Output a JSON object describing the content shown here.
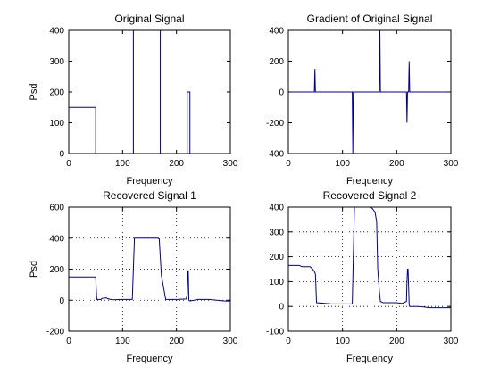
{
  "figure": {
    "background": "#ffffff",
    "line_color": "#00008b",
    "axis_color": "#000000"
  },
  "chart_data": [
    {
      "type": "line",
      "title": "Original Signal",
      "xlabel": "Frequency",
      "ylabel": "Psd",
      "xlim": [
        0,
        300
      ],
      "ylim": [
        0,
        400
      ],
      "xticks": [
        "0",
        "100",
        "200",
        "300"
      ],
      "yticks": [
        "0",
        "100",
        "200",
        "300",
        "400"
      ],
      "grid": false,
      "series": [
        {
          "x": [
            0,
            50,
            50,
            120,
            120,
            170,
            170,
            220,
            220,
            225,
            225,
            300
          ],
          "y": [
            150,
            150,
            0,
            0,
            400,
            400,
            0,
            0,
            200,
            200,
            0,
            0
          ]
        }
      ]
    },
    {
      "type": "line",
      "title": "Gradient of Original Signal",
      "xlabel": "Frequency",
      "ylabel": "",
      "xlim": [
        0,
        300
      ],
      "ylim": [
        -400,
        400
      ],
      "xticks": [
        "0",
        "100",
        "200",
        "300"
      ],
      "yticks": [
        "-400",
        "-200",
        "0",
        "200",
        "400"
      ],
      "grid": false,
      "series": [
        {
          "x": [
            0,
            48,
            48.5,
            49,
            49.5,
            50,
            118,
            118.5,
            119,
            119.5,
            120,
            168,
            168.5,
            169,
            169.5,
            170,
            218,
            218.5,
            219,
            219.5,
            220,
            222,
            222.5,
            223,
            223.5,
            224,
            300
          ],
          "y": [
            0,
            0,
            80,
            150,
            70,
            0,
            0,
            -200,
            -400,
            -200,
            0,
            0,
            200,
            400,
            200,
            0,
            0,
            -100,
            -200,
            -100,
            0,
            0,
            100,
            200,
            100,
            0,
            0
          ]
        }
      ]
    },
    {
      "type": "line",
      "title": "Recovered Signal 1",
      "xlabel": "Frequency",
      "ylabel": "Psd",
      "xlim": [
        0,
        300
      ],
      "ylim": [
        -200,
        600
      ],
      "xticks": [
        "0",
        "100",
        "200",
        "300"
      ],
      "yticks": [
        "-200",
        "0",
        "200",
        "400",
        "600"
      ],
      "grid": true,
      "series": [
        {
          "x": [
            0,
            50,
            52,
            60,
            62,
            70,
            72,
            78,
            82,
            100,
            118,
            122,
            165,
            168,
            172,
            180,
            200,
            218,
            220,
            221,
            222,
            223,
            225,
            240,
            260,
            275,
            290,
            300
          ],
          "y": [
            150,
            150,
            5,
            5,
            12,
            15,
            10,
            5,
            3,
            5,
            5,
            400,
            400,
            395,
            160,
            5,
            5,
            8,
            40,
            190,
            190,
            0,
            -5,
            5,
            5,
            0,
            -5,
            -5
          ]
        }
      ]
    },
    {
      "type": "line",
      "title": "Recovered Signal 2",
      "xlabel": "Frequency",
      "ylabel": "",
      "xlim": [
        0,
        300
      ],
      "ylim": [
        -100,
        400
      ],
      "xticks": [
        "0",
        "100",
        "200",
        "300"
      ],
      "yticks": [
        "-100",
        "0",
        "100",
        "200",
        "300",
        "400"
      ],
      "grid": true,
      "series": [
        {
          "x": [
            0,
            20,
            25,
            40,
            45,
            48,
            50,
            52,
            80,
            100,
            115,
            118,
            120,
            122,
            140,
            150,
            155,
            160,
            163,
            165,
            168,
            170,
            175,
            200,
            210,
            218,
            219,
            220,
            221,
            222,
            223,
            224,
            240,
            250,
            260,
            300
          ],
          "y": [
            165,
            165,
            160,
            160,
            150,
            140,
            130,
            15,
            10,
            10,
            10,
            10,
            210,
            400,
            400,
            400,
            395,
            380,
            340,
            150,
            60,
            20,
            15,
            15,
            12,
            20,
            100,
            150,
            150,
            80,
            5,
            0,
            0,
            -2,
            -5,
            -5
          ]
        }
      ]
    }
  ]
}
